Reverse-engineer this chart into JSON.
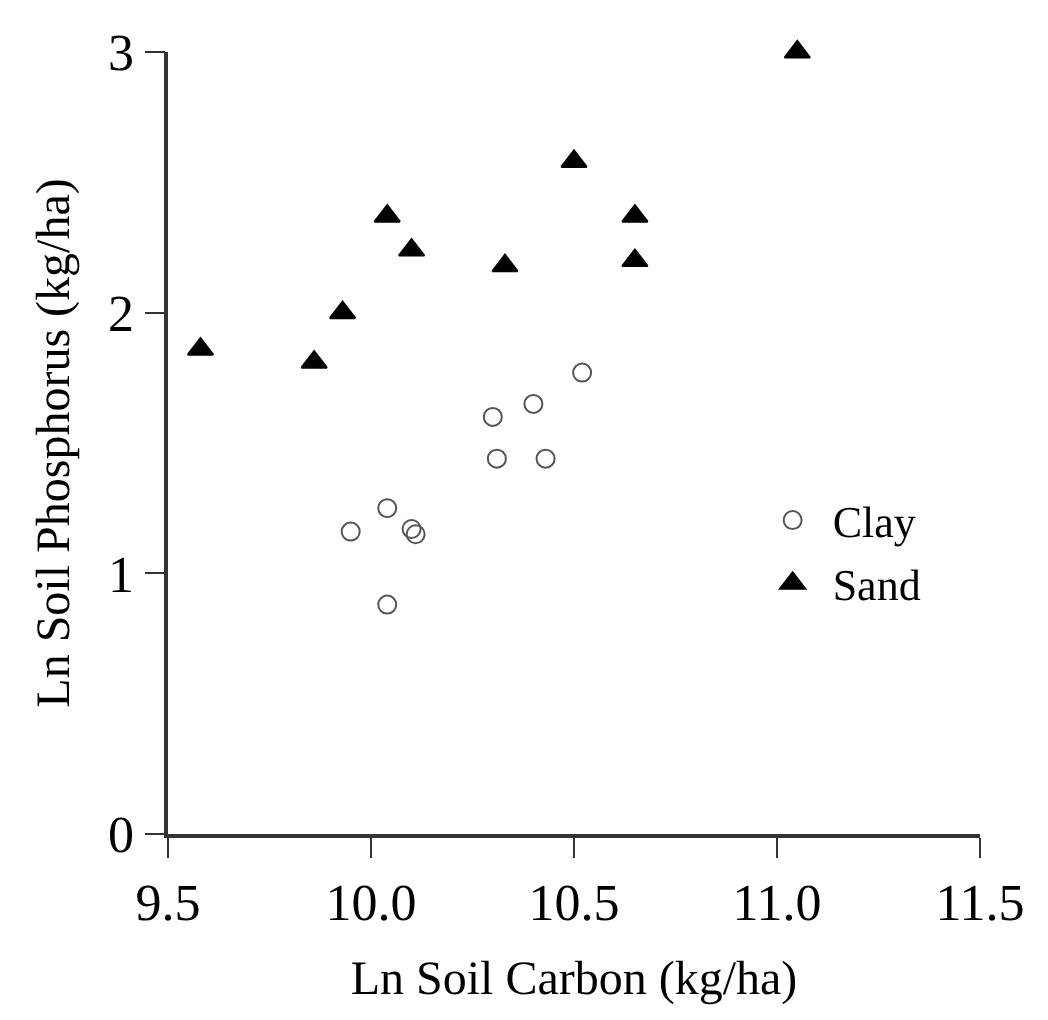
{
  "chart_data": {
    "type": "scatter",
    "xlabel": "Ln Soil Carbon (kg/ha)",
    "ylabel": "Ln Soil Phosphorus (kg/ha)",
    "xlim": [
      9.5,
      11.5
    ],
    "xticks": [
      {
        "value": 9.5,
        "label": "9.5"
      },
      {
        "value": 10,
        "label": "10.0"
      },
      {
        "value": 10.5,
        "label": "10.5"
      },
      {
        "value": 11,
        "label": "11.0"
      },
      {
        "value": 11.5,
        "label": "11.5"
      }
    ],
    "ylim": [
      0,
      3
    ],
    "yticks": [
      0,
      1,
      2,
      3
    ],
    "legend": "right",
    "series": [
      {
        "name": "Clay",
        "color": "#555555",
        "marker": "circle",
        "x": [
          9.95,
          10.04,
          10.04,
          10.1,
          10.11,
          10.3,
          10.31,
          10.4,
          10.43,
          10.52
        ],
        "values": [
          1.16,
          1.25,
          0.88,
          1.17,
          1.15,
          1.6,
          1.44,
          1.65,
          1.44,
          1.77
        ]
      },
      {
        "name": "Sand",
        "color": "#000000",
        "marker": "triangle",
        "x": [
          9.58,
          9.86,
          9.93,
          10.04,
          10.1,
          10.33,
          10.5,
          10.65,
          10.65,
          11.05
        ],
        "values": [
          1.86,
          1.81,
          2.0,
          2.37,
          2.24,
          2.18,
          2.58,
          2.37,
          2.2,
          3.0
        ]
      }
    ]
  }
}
